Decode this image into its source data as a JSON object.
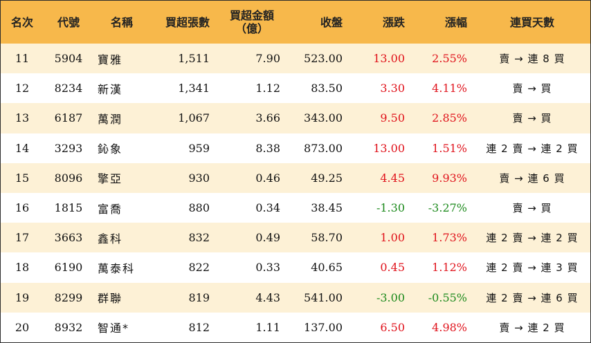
{
  "headers": {
    "rank": "名次",
    "code": "代號",
    "name": "名稱",
    "net_buy_lots": "買超張數",
    "net_buy_amount_l1": "買超金額",
    "net_buy_amount_l2": "（億）",
    "close": "收盤",
    "change": "漲跌",
    "change_pct": "漲幅",
    "streak": "連買天數"
  },
  "colors": {
    "header_bg": "#f7b84b",
    "odd_row_bg": "#fdf1d6",
    "up": "#e0121b",
    "down": "#1c8a1c"
  },
  "rows": [
    {
      "rank": "11",
      "code": "5904",
      "name": "寶雅",
      "lots": "1,511",
      "amount": "7.90",
      "close": "523.00",
      "change": "13.00",
      "pct": "2.55%",
      "dir": "up",
      "streak": "賣 → 連 8 買"
    },
    {
      "rank": "12",
      "code": "8234",
      "name": "新漢",
      "lots": "1,341",
      "amount": "1.12",
      "close": "83.50",
      "change": "3.30",
      "pct": "4.11%",
      "dir": "up",
      "streak": "賣 → 買"
    },
    {
      "rank": "13",
      "code": "6187",
      "name": "萬潤",
      "lots": "1,067",
      "amount": "3.66",
      "close": "343.00",
      "change": "9.50",
      "pct": "2.85%",
      "dir": "up",
      "streak": "賣 → 買"
    },
    {
      "rank": "14",
      "code": "3293",
      "name": "鈊象",
      "lots": "959",
      "amount": "8.38",
      "close": "873.00",
      "change": "13.00",
      "pct": "1.51%",
      "dir": "up",
      "streak": "連 2 賣 → 連 2 買"
    },
    {
      "rank": "15",
      "code": "8096",
      "name": "擎亞",
      "lots": "930",
      "amount": "0.46",
      "close": "49.25",
      "change": "4.45",
      "pct": "9.93%",
      "dir": "up",
      "streak": "賣 → 連 6 買"
    },
    {
      "rank": "16",
      "code": "1815",
      "name": "富喬",
      "lots": "880",
      "amount": "0.34",
      "close": "38.45",
      "change": "-1.30",
      "pct": "-3.27%",
      "dir": "down",
      "streak": "賣 → 買"
    },
    {
      "rank": "17",
      "code": "3663",
      "name": "鑫科",
      "lots": "832",
      "amount": "0.49",
      "close": "58.70",
      "change": "1.00",
      "pct": "1.73%",
      "dir": "up",
      "streak": "連 2 賣 → 連 2 買"
    },
    {
      "rank": "18",
      "code": "6190",
      "name": "萬泰科",
      "lots": "822",
      "amount": "0.33",
      "close": "40.65",
      "change": "0.45",
      "pct": "1.12%",
      "dir": "up",
      "streak": "連 2 賣 → 連 3 買"
    },
    {
      "rank": "19",
      "code": "8299",
      "name": "群聯",
      "lots": "819",
      "amount": "4.43",
      "close": "541.00",
      "change": "-3.00",
      "pct": "-0.55%",
      "dir": "down",
      "streak": "連 2 賣 → 連 6 買"
    },
    {
      "rank": "20",
      "code": "8932",
      "name": "智通*",
      "lots": "812",
      "amount": "1.11",
      "close": "137.00",
      "change": "6.50",
      "pct": "4.98%",
      "dir": "up",
      "streak": "賣 → 連 2 買"
    }
  ]
}
